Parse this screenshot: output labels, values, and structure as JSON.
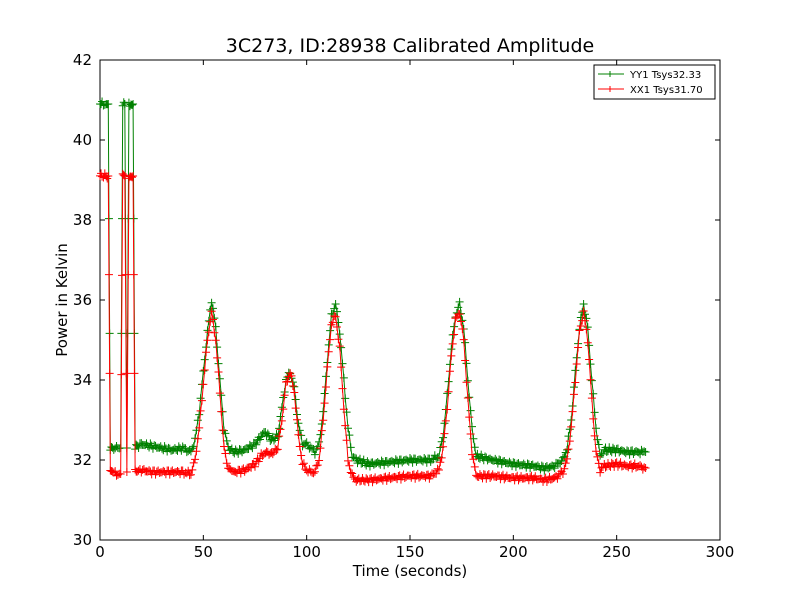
{
  "chart_data": {
    "type": "line",
    "title": "3C273, ID:28938 Calibrated Amplitude",
    "xlabel": "Time (seconds)",
    "ylabel": "Power in Kelvin",
    "xlim": [
      0,
      300
    ],
    "ylim": [
      30,
      42
    ],
    "xticks": [
      "0",
      "50",
      "100",
      "150",
      "200",
      "250",
      "300"
    ],
    "yticks": [
      "30",
      "32",
      "34",
      "36",
      "38",
      "40",
      "42"
    ],
    "grid": false,
    "legend_position": "top-right",
    "marker": "plus",
    "series": [
      {
        "name": "YY1 Tsys32.33",
        "color": "#008000",
        "x": [
          0,
          1,
          3,
          4,
          5,
          6,
          8,
          10,
          11,
          12,
          13,
          14,
          15,
          16,
          17,
          18,
          20,
          25,
          30,
          35,
          40,
          44,
          46,
          48,
          50,
          52,
          54,
          56,
          58,
          60,
          62,
          65,
          70,
          75,
          78,
          80,
          83,
          86,
          88,
          90,
          92,
          94,
          96,
          98,
          100,
          102,
          104,
          106,
          108,
          110,
          112,
          114,
          116,
          118,
          120,
          122,
          124,
          130,
          140,
          150,
          160,
          164,
          166,
          168,
          170,
          172,
          174,
          176,
          178,
          180,
          182,
          190,
          200,
          210,
          215,
          220,
          224,
          226,
          228,
          230,
          232,
          234,
          236,
          238,
          240,
          242,
          244,
          250,
          255,
          260,
          264
        ],
        "y": [
          40.9,
          40.9,
          40.9,
          40.9,
          32.3,
          32.3,
          32.3,
          32.3,
          40.9,
          40.9,
          32.3,
          40.9,
          40.9,
          40.9,
          32.3,
          32.35,
          32.4,
          32.35,
          32.3,
          32.25,
          32.3,
          32.2,
          32.5,
          33.2,
          34.2,
          35.2,
          36.0,
          35.3,
          34.0,
          32.8,
          32.3,
          32.2,
          32.25,
          32.4,
          32.6,
          32.7,
          32.5,
          32.6,
          33.3,
          34.0,
          34.2,
          33.8,
          32.9,
          32.4,
          32.4,
          32.3,
          32.2,
          32.4,
          33.2,
          34.5,
          35.6,
          35.9,
          35.2,
          34.0,
          32.8,
          32.1,
          32.0,
          31.9,
          31.95,
          32.0,
          32.0,
          32.1,
          32.6,
          33.6,
          34.8,
          35.6,
          35.9,
          35.3,
          34.0,
          32.8,
          32.1,
          32.0,
          31.9,
          31.85,
          31.8,
          31.85,
          32.0,
          32.3,
          33.0,
          34.2,
          35.3,
          35.9,
          35.3,
          34.0,
          32.8,
          32.1,
          32.25,
          32.25,
          32.2,
          32.2,
          32.2
        ]
      },
      {
        "name": "XX1 Tsys31.70",
        "color": "#ff0000",
        "x": [
          0,
          1,
          3,
          4,
          5,
          6,
          8,
          10,
          11,
          12,
          13,
          14,
          15,
          16,
          17,
          18,
          20,
          25,
          30,
          35,
          40,
          44,
          46,
          48,
          50,
          52,
          54,
          56,
          58,
          60,
          62,
          65,
          70,
          75,
          78,
          80,
          83,
          86,
          88,
          90,
          92,
          94,
          96,
          98,
          100,
          102,
          104,
          106,
          108,
          110,
          112,
          114,
          116,
          118,
          120,
          122,
          124,
          130,
          140,
          150,
          160,
          164,
          166,
          168,
          170,
          172,
          174,
          176,
          178,
          180,
          182,
          190,
          200,
          210,
          215,
          220,
          224,
          226,
          228,
          230,
          232,
          234,
          236,
          238,
          240,
          242,
          244,
          250,
          255,
          260,
          264
        ],
        "y": [
          39.1,
          39.1,
          39.1,
          39.1,
          31.7,
          31.7,
          31.65,
          31.65,
          39.1,
          39.1,
          31.7,
          39.1,
          39.1,
          39.1,
          31.7,
          31.7,
          31.75,
          31.7,
          31.7,
          31.7,
          31.7,
          31.65,
          32.0,
          32.8,
          33.9,
          35.0,
          35.7,
          35.0,
          33.7,
          32.3,
          31.8,
          31.7,
          31.75,
          31.9,
          32.1,
          32.2,
          32.15,
          32.3,
          33.0,
          33.9,
          34.2,
          33.7,
          32.6,
          31.9,
          31.75,
          31.7,
          31.7,
          32.0,
          33.0,
          34.3,
          35.4,
          35.6,
          34.8,
          33.3,
          32.0,
          31.6,
          31.5,
          31.5,
          31.55,
          31.6,
          31.6,
          31.75,
          32.3,
          33.3,
          34.6,
          35.5,
          35.7,
          35.0,
          33.5,
          32.2,
          31.6,
          31.6,
          31.55,
          31.55,
          31.5,
          31.55,
          31.7,
          32.0,
          32.8,
          34.0,
          35.2,
          35.7,
          35.0,
          33.5,
          32.2,
          31.75,
          31.85,
          31.9,
          31.85,
          31.85,
          31.8
        ]
      }
    ]
  }
}
